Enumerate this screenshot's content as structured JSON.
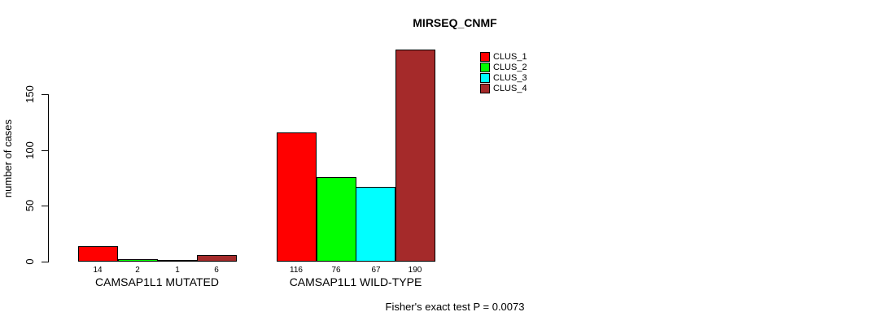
{
  "title": "MIRSEQ_CNMF",
  "y_axis": {
    "label": "number of cases",
    "ticks": [
      0,
      50,
      100,
      150
    ]
  },
  "legend": {
    "items": [
      {
        "label": "CLUS_1",
        "color": "#FF0000"
      },
      {
        "label": "CLUS_2",
        "color": "#00FF00"
      },
      {
        "label": "CLUS_3",
        "color": "#00FFFF"
      },
      {
        "label": "CLUS_4",
        "color": "#A52A2A"
      }
    ]
  },
  "footer": "Fisher's exact test P = 0.0073",
  "chart_data": {
    "type": "bar",
    "title": "MIRSEQ_CNMF",
    "xlabel": "",
    "ylabel": "number of cases",
    "ylim": [
      0,
      193
    ],
    "axis_ticks": [
      0,
      50,
      100,
      150
    ],
    "grid": false,
    "legend_position": "top-right",
    "bar_value_labels_shown": true,
    "categories": [
      "CAMSAP1L1 MUTATED",
      "CAMSAP1L1 WILD-TYPE"
    ],
    "series": [
      {
        "name": "CLUS_1",
        "color": "#FF0000",
        "values": [
          14,
          116
        ]
      },
      {
        "name": "CLUS_2",
        "color": "#00FF00",
        "values": [
          2,
          76
        ]
      },
      {
        "name": "CLUS_3",
        "color": "#00FFFF",
        "values": [
          1,
          67
        ]
      },
      {
        "name": "CLUS_4",
        "color": "#A52A2A",
        "values": [
          6,
          190
        ]
      }
    ],
    "annotation": "Fisher's exact test P = 0.0073"
  }
}
